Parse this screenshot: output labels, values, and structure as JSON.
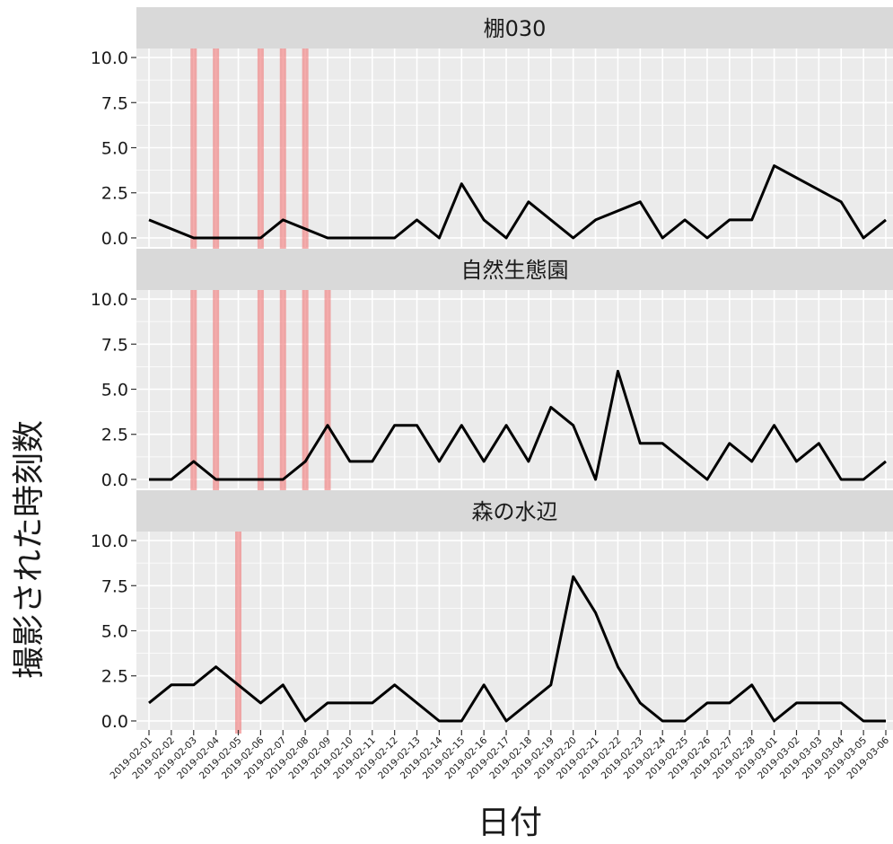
{
  "chart_data": {
    "type": "line",
    "xlabel": "日付",
    "ylabel": "撮影された時刻数",
    "ylim": [
      -0.5,
      10.5
    ],
    "yticks": [
      0.0,
      2.5,
      5.0,
      7.5,
      10.0
    ],
    "ytick_labels": [
      "0.0",
      "2.5",
      "5.0",
      "7.5",
      "10.0"
    ],
    "grid": true,
    "x_categories": [
      "2019-02-01",
      "2019-02-02",
      "2019-02-03",
      "2019-02-04",
      "2019-02-05",
      "2019-02-06",
      "2019-02-07",
      "2019-02-08",
      "2019-02-09",
      "2019-02-10",
      "2019-02-11",
      "2019-02-12",
      "2019-02-13",
      "2019-02-14",
      "2019-02-15",
      "2019-02-16",
      "2019-02-17",
      "2019-02-18",
      "2019-02-19",
      "2019-02-20",
      "2019-02-21",
      "2019-02-22",
      "2019-02-23",
      "2019-02-24",
      "2019-02-25",
      "2019-02-26",
      "2019-02-27",
      "2019-02-28",
      "2019-03-01",
      "2019-03-02",
      "2019-03-03",
      "2019-03-04",
      "2019-03-05",
      "2019-03-06"
    ],
    "panels": [
      {
        "title": "棚030",
        "series": [
          {
            "x": [
              "2019-02-01",
              "2019-02-03",
              "2019-02-06",
              "2019-02-07",
              "2019-02-09",
              "2019-02-12",
              "2019-02-13",
              "2019-02-14",
              "2019-02-15",
              "2019-02-16",
              "2019-02-17",
              "2019-02-18",
              "2019-02-20",
              "2019-02-21",
              "2019-02-23",
              "2019-02-24",
              "2019-02-25",
              "2019-02-26",
              "2019-02-27",
              "2019-02-28",
              "2019-03-01",
              "2019-03-04",
              "2019-03-05",
              "2019-03-06"
            ],
            "y": [
              1,
              0,
              0,
              1,
              0,
              0,
              1,
              0,
              3,
              1,
              0,
              2,
              0,
              1,
              2,
              0,
              1,
              0,
              1,
              1,
              4,
              2,
              0,
              1
            ]
          }
        ],
        "highlight_dates": [
          "2019-02-03",
          "2019-02-04",
          "2019-02-06",
          "2019-02-07",
          "2019-02-08"
        ]
      },
      {
        "title": "自然生態園",
        "series": [
          {
            "x": [
              "2019-02-01",
              "2019-02-02",
              "2019-02-03",
              "2019-02-04",
              "2019-02-05",
              "2019-02-06",
              "2019-02-07",
              "2019-02-08",
              "2019-02-09",
              "2019-02-10",
              "2019-02-11",
              "2019-02-12",
              "2019-02-13",
              "2019-02-14",
              "2019-02-15",
              "2019-02-16",
              "2019-02-17",
              "2019-02-18",
              "2019-02-19",
              "2019-02-20",
              "2019-02-21",
              "2019-02-22",
              "2019-02-23",
              "2019-02-24",
              "2019-02-26",
              "2019-02-27",
              "2019-02-28",
              "2019-03-01",
              "2019-03-02",
              "2019-03-03",
              "2019-03-04",
              "2019-03-05",
              "2019-03-06"
            ],
            "y": [
              0,
              0,
              1,
              0,
              0,
              0,
              0,
              1,
              3,
              1,
              1,
              3,
              3,
              1,
              3,
              1,
              3,
              1,
              4,
              3,
              0,
              6,
              2,
              2,
              0,
              2,
              1,
              3,
              1,
              2,
              0,
              0,
              1
            ]
          }
        ],
        "highlight_dates": [
          "2019-02-03",
          "2019-02-04",
          "2019-02-06",
          "2019-02-07",
          "2019-02-08",
          "2019-02-09"
        ]
      },
      {
        "title": "森の水辺",
        "series": [
          {
            "x": [
              "2019-02-01",
              "2019-02-02",
              "2019-02-03",
              "2019-02-04",
              "2019-02-06",
              "2019-02-07",
              "2019-02-08",
              "2019-02-09",
              "2019-02-10",
              "2019-02-11",
              "2019-02-12",
              "2019-02-14",
              "2019-02-15",
              "2019-02-16",
              "2019-02-17",
              "2019-02-19",
              "2019-02-20",
              "2019-02-21",
              "2019-02-22",
              "2019-02-23",
              "2019-02-24",
              "2019-02-25",
              "2019-02-26",
              "2019-02-27",
              "2019-02-28",
              "2019-03-01",
              "2019-03-02",
              "2019-03-03",
              "2019-03-04",
              "2019-03-05",
              "2019-03-06"
            ],
            "y": [
              1,
              2,
              2,
              3,
              1,
              2,
              0,
              1,
              1,
              1,
              2,
              0,
              0,
              2,
              0,
              2,
              8,
              6,
              3,
              1,
              0,
              0,
              1,
              1,
              2,
              0,
              1,
              1,
              1,
              0,
              0
            ]
          }
        ],
        "highlight_dates": [
          "2019-02-05"
        ]
      }
    ],
    "colors": {
      "line": "#000000",
      "highlight": "#f08080",
      "panel_background": "#ebebeb",
      "strip_background": "#d9d9d9"
    }
  }
}
